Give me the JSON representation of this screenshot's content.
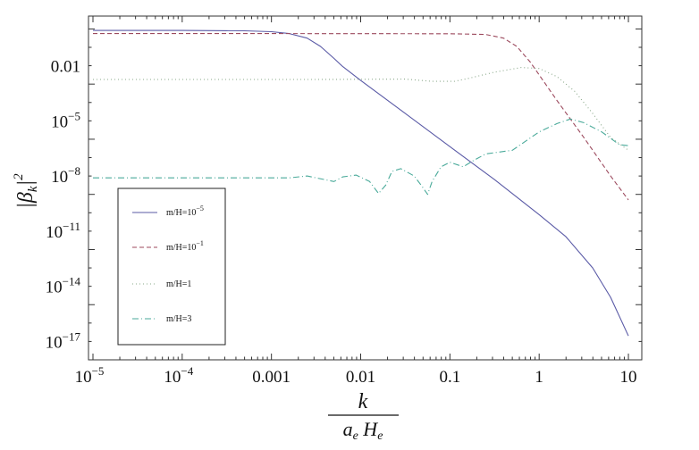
{
  "chart_data": {
    "type": "line",
    "title": "",
    "xlabel": {
      "numerator": "k",
      "denominator": "a_e H_e"
    },
    "ylabel": "|β_k|^2",
    "xscale": "log",
    "yscale": "log",
    "xlim_log10": [
      -5.05,
      1.15
    ],
    "ylim_log10": [
      -18.0,
      0.7
    ],
    "grid": false,
    "legend_position": "bottom-left",
    "x_ticks": [
      {
        "exp": -5,
        "label_base": "10",
        "label_sup": "−5"
      },
      {
        "exp": -4,
        "label_base": "10",
        "label_sup": "−4"
      },
      {
        "exp": -3,
        "label_base": "0.001",
        "label_sup": ""
      },
      {
        "exp": -2,
        "label_base": "0.01",
        "label_sup": ""
      },
      {
        "exp": -1,
        "label_base": "0.1",
        "label_sup": ""
      },
      {
        "exp": 0,
        "label_base": "1",
        "label_sup": ""
      },
      {
        "exp": 1,
        "label_base": "10",
        "label_sup": ""
      }
    ],
    "y_ticks": [
      {
        "exp": -2,
        "label_base": "0.01",
        "label_sup": ""
      },
      {
        "exp": -5,
        "label_base": "10",
        "label_sup": "−5"
      },
      {
        "exp": -8,
        "label_base": "10",
        "label_sup": "−8"
      },
      {
        "exp": -11,
        "label_base": "10",
        "label_sup": "−11"
      },
      {
        "exp": -14,
        "label_base": "10",
        "label_sup": "−14"
      },
      {
        "exp": -17,
        "label_base": "10",
        "label_sup": "−17"
      }
    ],
    "series": [
      {
        "name": "m/H=10^-5",
        "legend_base": "m/H=10",
        "legend_sup": "−5",
        "color": "#5a5aa6",
        "dash": "",
        "points_log10": [
          [
            -5,
            -0.08
          ],
          [
            -4,
            -0.08
          ],
          [
            -3.3,
            -0.1
          ],
          [
            -3,
            -0.15
          ],
          [
            -2.8,
            -0.25
          ],
          [
            -2.6,
            -0.5
          ],
          [
            -2.45,
            -0.95
          ],
          [
            -2.3,
            -1.6
          ],
          [
            -2.2,
            -2.05
          ],
          [
            -2,
            -2.8
          ],
          [
            -1.5,
            -4.6
          ],
          [
            -1,
            -6.4
          ],
          [
            -0.5,
            -8.2
          ],
          [
            0,
            -10.1
          ],
          [
            0.3,
            -11.3
          ],
          [
            0.6,
            -13
          ],
          [
            0.8,
            -14.6
          ],
          [
            1,
            -16.7
          ]
        ]
      },
      {
        "name": "m/H=10^-1",
        "legend_base": "m/H=10",
        "legend_sup": "−1",
        "color": "#9c4a5e",
        "dash": "5,3",
        "points_log10": [
          [
            -5,
            -0.25
          ],
          [
            -3,
            -0.25
          ],
          [
            -1,
            -0.26
          ],
          [
            -0.6,
            -0.3
          ],
          [
            -0.4,
            -0.5
          ],
          [
            -0.25,
            -0.95
          ],
          [
            -0.1,
            -1.8
          ],
          [
            0,
            -2.5
          ],
          [
            0.2,
            -3.9
          ],
          [
            0.5,
            -5.9
          ],
          [
            0.8,
            -8
          ],
          [
            1,
            -9.3
          ]
        ]
      },
      {
        "name": "m/H=1",
        "legend_base": "m/H=1",
        "legend_sup": "",
        "color": "#8aa88a",
        "dash": "1,3",
        "points_log10": [
          [
            -5,
            -2.75
          ],
          [
            -2.5,
            -2.75
          ],
          [
            -1.5,
            -2.73
          ],
          [
            -1.2,
            -2.85
          ],
          [
            -0.95,
            -2.85
          ],
          [
            -0.8,
            -2.7
          ],
          [
            -0.5,
            -2.35
          ],
          [
            -0.2,
            -2.1
          ],
          [
            0,
            -2.15
          ],
          [
            0.2,
            -2.6
          ],
          [
            0.4,
            -3.4
          ],
          [
            0.6,
            -4.6
          ],
          [
            0.8,
            -5.9
          ],
          [
            1,
            -6.6
          ]
        ]
      },
      {
        "name": "m/H=3",
        "legend_base": "m/H=3",
        "legend_sup": "",
        "color": "#4aaa9a",
        "dash": "7,3,1,3",
        "points_log10": [
          [
            -5,
            -8.1
          ],
          [
            -2.8,
            -8.1
          ],
          [
            -2.6,
            -8
          ],
          [
            -2.5,
            -8.1
          ],
          [
            -2.3,
            -8.3
          ],
          [
            -2.2,
            -8.05
          ],
          [
            -2.05,
            -7.95
          ],
          [
            -1.9,
            -8.3
          ],
          [
            -1.8,
            -8.95
          ],
          [
            -1.72,
            -8.5
          ],
          [
            -1.65,
            -7.75
          ],
          [
            -1.55,
            -7.6
          ],
          [
            -1.4,
            -8
          ],
          [
            -1.3,
            -8.65
          ],
          [
            -1.25,
            -9
          ],
          [
            -1.2,
            -8.3
          ],
          [
            -1.1,
            -7.5
          ],
          [
            -1,
            -7.25
          ],
          [
            -0.85,
            -7.5
          ],
          [
            -0.75,
            -7.2
          ],
          [
            -0.6,
            -6.8
          ],
          [
            -0.3,
            -6.6
          ],
          [
            0,
            -5.6
          ],
          [
            0.2,
            -5.15
          ],
          [
            0.35,
            -4.9
          ],
          [
            0.5,
            -5.1
          ],
          [
            0.7,
            -5.6
          ],
          [
            0.9,
            -6.3
          ],
          [
            1,
            -6.35
          ]
        ]
      }
    ]
  }
}
